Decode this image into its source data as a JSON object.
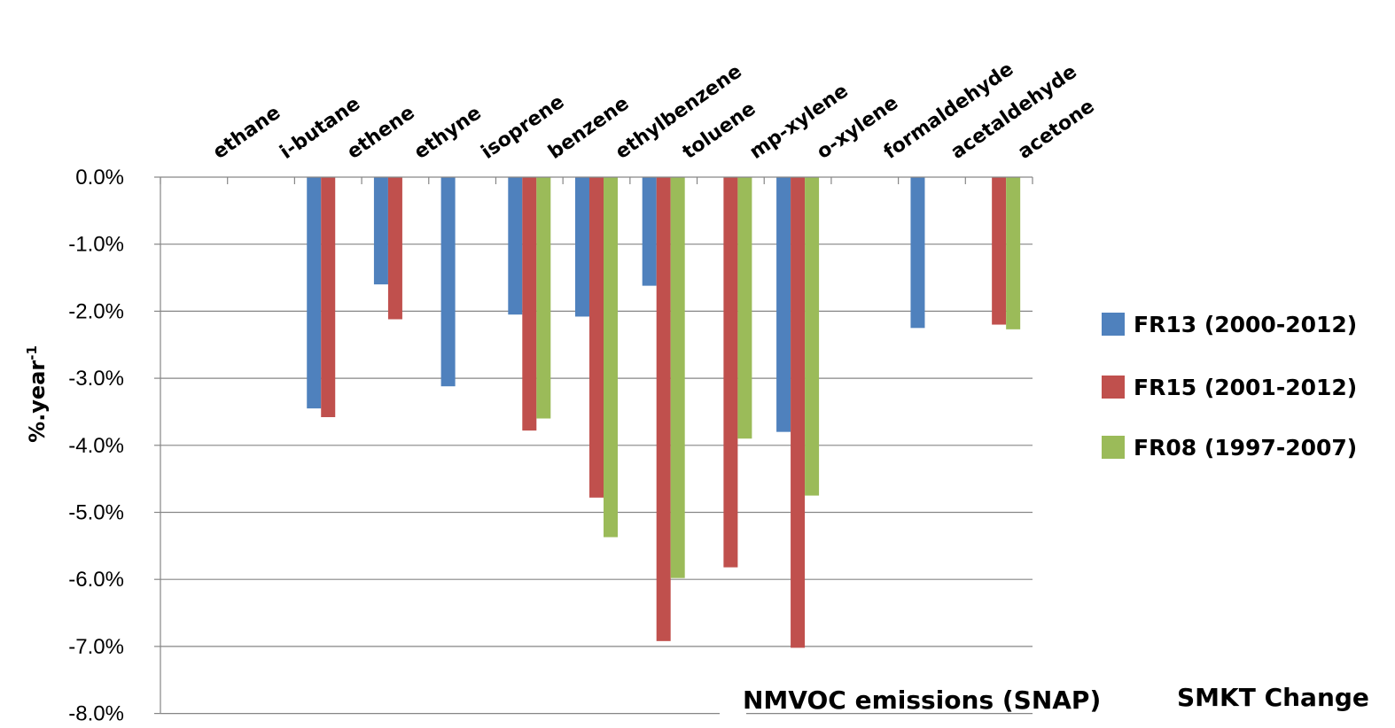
{
  "chart_data": {
    "type": "bar",
    "orientation": "vertical",
    "categories": [
      "ethane",
      "i-butane",
      "ethene",
      "ethyne",
      "isoprene",
      "benzene",
      "ethylbenzene",
      "toluene",
      "mp-xylene",
      "o-xylene",
      "formaldehyde",
      "acetaldehyde",
      "acetone"
    ],
    "category_axis_position": "top",
    "series": [
      {
        "name": "FR13 (2000-2012)",
        "color": "#4F81BD",
        "values": [
          null,
          null,
          -3.45,
          -1.6,
          -3.12,
          -2.05,
          -2.08,
          -1.62,
          null,
          -3.8,
          null,
          -2.25,
          null
        ]
      },
      {
        "name": "FR15 (2001-2012)",
        "color": "#C0504D",
        "values": [
          null,
          null,
          -3.58,
          -2.12,
          null,
          -3.78,
          -4.78,
          -6.92,
          -5.82,
          -7.02,
          null,
          null,
          -2.2
        ]
      },
      {
        "name": "FR08 (1997-2007)",
        "color": "#9BBB59",
        "values": [
          null,
          null,
          null,
          null,
          null,
          -3.6,
          -5.37,
          -5.98,
          -3.9,
          -4.75,
          null,
          null,
          -2.27
        ]
      }
    ],
    "yticks": [
      "0.0%",
      "-1.0%",
      "-2.0%",
      "-3.0%",
      "-4.0%",
      "-5.0%",
      "-6.0%",
      "-7.0%",
      "-8.0%"
    ],
    "ylim": [
      -8,
      0
    ],
    "ylabel_main": "%.year",
    "ylabel_sup": "-1",
    "grid": true,
    "legend_position": "right",
    "annotations": [
      "NMVOC emissions (SNAP)",
      "SMKT Change"
    ]
  }
}
